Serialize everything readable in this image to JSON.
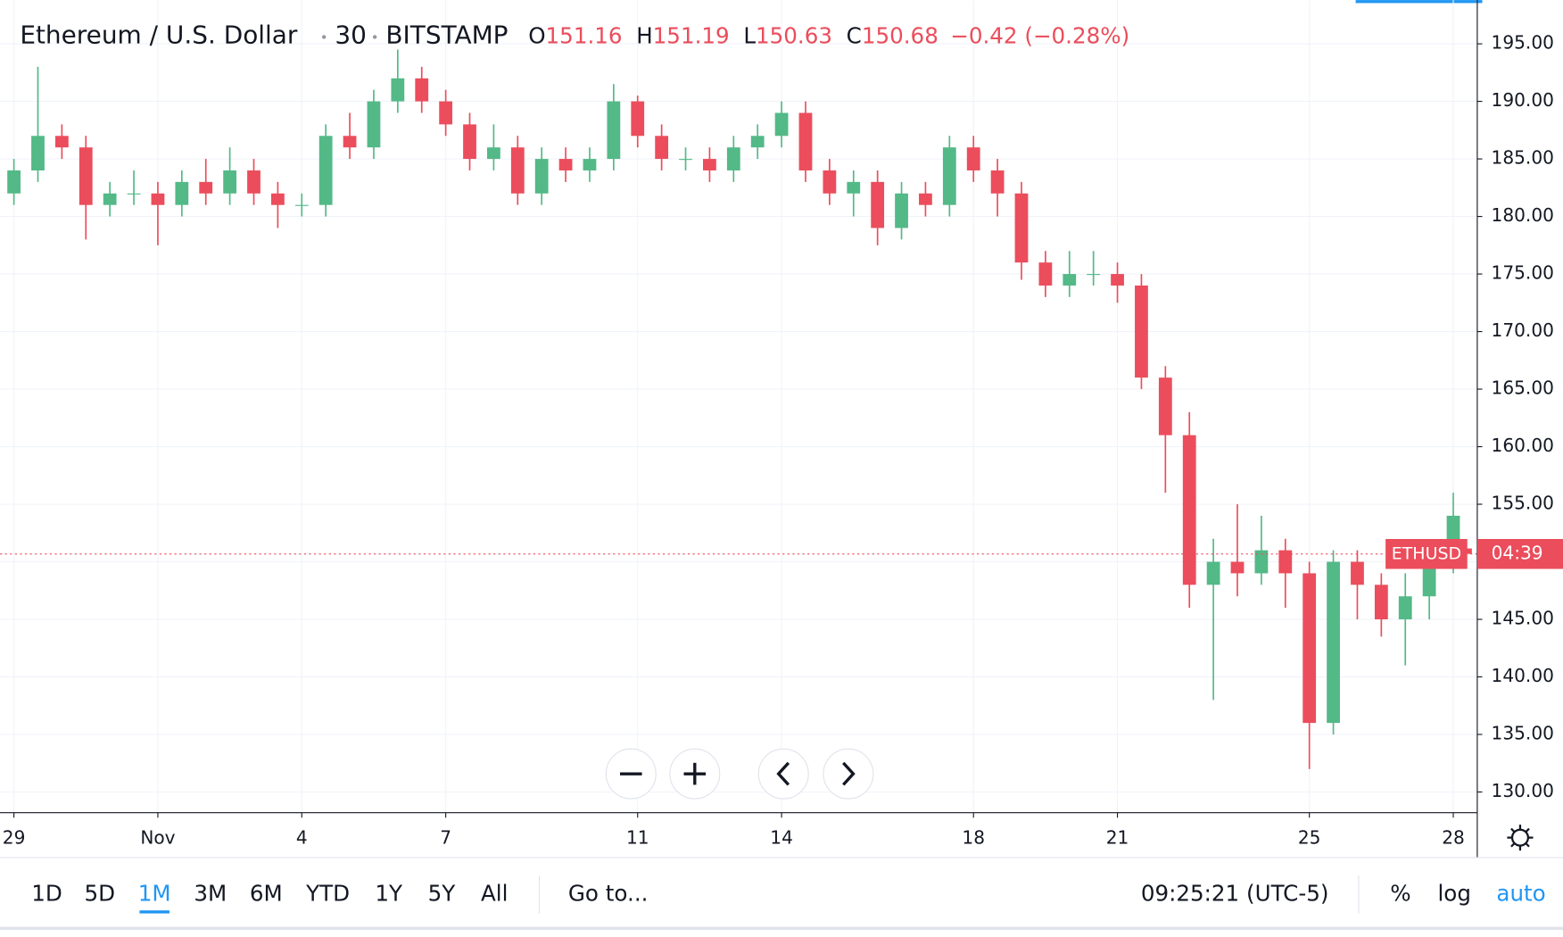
{
  "chart_data": {
    "type": "candlestick",
    "title": "Ethereum / U.S. Dollar",
    "interval": "30",
    "exchange": "BITSTAMP",
    "quote": [
      {
        "key": "O",
        "value": "151.16"
      },
      {
        "key": "H",
        "value": "151.19"
      },
      {
        "key": "L",
        "value": "150.63"
      },
      {
        "key": "C",
        "value": "150.68"
      }
    ],
    "change": "−0.42 (−0.28%)",
    "symbol_label": "ETHUSD",
    "countdown": "04:39",
    "up_color": "#53b987",
    "down_color": "#eb4d5c",
    "grid": true,
    "xlim": [
      -0.29,
      30.5
    ],
    "ylim": [
      128.2,
      198.8
    ],
    "xticks": [
      {
        "value": 0,
        "label": "29"
      },
      {
        "value": 3,
        "label": "Nov"
      },
      {
        "value": 6,
        "label": "4"
      },
      {
        "value": 9,
        "label": "7"
      },
      {
        "value": 13,
        "label": "11"
      },
      {
        "value": 16,
        "label": "14"
      },
      {
        "value": 20,
        "label": "18"
      },
      {
        "value": 23,
        "label": "21"
      },
      {
        "value": 27,
        "label": "25"
      },
      {
        "value": 30,
        "label": "28"
      }
    ],
    "yticks": [
      {
        "value": 130,
        "label": "130.00"
      },
      {
        "value": 135,
        "label": "135.00"
      },
      {
        "value": 140,
        "label": "140.00"
      },
      {
        "value": 145,
        "label": "145.00"
      },
      {
        "value": 150,
        "label": "150.00"
      },
      {
        "value": 155,
        "label": "155.00"
      },
      {
        "value": 160,
        "label": "160.00"
      },
      {
        "value": 165,
        "label": "165.00"
      },
      {
        "value": 170,
        "label": "170.00"
      },
      {
        "value": 175,
        "label": "175.00"
      },
      {
        "value": 180,
        "label": "180.00"
      },
      {
        "value": 185,
        "label": "185.00"
      },
      {
        "value": 190,
        "label": "190.00"
      },
      {
        "value": 195,
        "label": "195.00"
      }
    ],
    "x": [
      0,
      0.5,
      1,
      1.5,
      2,
      2.5,
      3,
      3.5,
      4,
      4.5,
      5,
      5.5,
      6,
      6.5,
      7,
      7.5,
      8,
      8.5,
      9,
      9.5,
      10,
      10.5,
      11,
      11.5,
      12,
      12.5,
      13,
      13.5,
      14,
      14.5,
      15,
      15.5,
      16,
      16.5,
      17,
      17.5,
      18,
      18.5,
      19,
      19.5,
      20,
      20.5,
      21,
      21.5,
      22,
      22.5,
      23,
      23.5,
      24,
      24.5,
      25,
      25.5,
      26,
      26.5,
      27,
      27.5,
      28,
      28.5,
      29,
      29.5,
      30,
      30.25
    ],
    "open": [
      182,
      184,
      187,
      186,
      181,
      182,
      182,
      181,
      183,
      182,
      184,
      182,
      181,
      181,
      187,
      186,
      190,
      192,
      190,
      188,
      185,
      186,
      182,
      185,
      184,
      185,
      190,
      187,
      185,
      185,
      184,
      186,
      187,
      189,
      184,
      182,
      183,
      179,
      182,
      181,
      186,
      184,
      182,
      176,
      174,
      175,
      175,
      174,
      166,
      161,
      148,
      150,
      149,
      151,
      149,
      136,
      150,
      148,
      145,
      147,
      150,
      151.16
    ],
    "high": [
      185,
      193,
      188,
      187,
      183,
      184,
      183,
      184,
      185,
      186,
      185,
      183,
      182,
      188,
      189,
      191,
      194.5,
      193,
      191,
      189,
      188,
      187,
      186,
      186,
      186,
      191.5,
      190.5,
      188,
      186,
      186,
      187,
      188,
      190,
      190,
      185,
      184,
      184,
      183,
      183,
      187,
      187,
      185,
      183,
      177,
      177,
      177,
      176,
      175,
      167,
      163,
      152,
      155,
      154,
      152,
      150,
      151,
      151,
      149,
      149,
      151,
      156,
      151.19
    ],
    "low": [
      181,
      183,
      185,
      178,
      180,
      181,
      177.5,
      180,
      181,
      181,
      181,
      179,
      180,
      180,
      185,
      185,
      189,
      189,
      187,
      184,
      184,
      181,
      181,
      183,
      183,
      184,
      186,
      184,
      184,
      183,
      183,
      185,
      186,
      183,
      181,
      180,
      177.5,
      178,
      180,
      180,
      183,
      180,
      174.5,
      173,
      173,
      174,
      172.5,
      165,
      156,
      146,
      138,
      147,
      148,
      146,
      132,
      135,
      145,
      143.5,
      141,
      145,
      149,
      150.63
    ],
    "close": [
      184,
      187,
      186,
      181,
      182,
      182,
      181,
      183,
      182,
      184,
      182,
      181,
      181,
      187,
      186,
      190,
      192,
      190,
      188,
      185,
      186,
      182,
      185,
      184,
      185,
      190,
      187,
      185,
      185,
      184,
      186,
      187,
      189,
      184,
      182,
      183,
      179,
      182,
      181,
      186,
      184,
      182,
      176,
      174,
      175,
      175,
      174,
      166,
      161,
      148,
      150,
      149,
      151,
      149,
      136,
      150,
      148,
      145,
      147,
      150,
      154,
      150.68
    ]
  },
  "toolbar": {
    "ranges": [
      "1D",
      "5D",
      "1M",
      "3M",
      "6M",
      "YTD",
      "1Y",
      "5Y",
      "All"
    ],
    "active": "1M",
    "goto": "Go to...",
    "clock": "09:25:21 (UTC-5)",
    "percent": "%",
    "log": "log",
    "auto": "auto"
  }
}
